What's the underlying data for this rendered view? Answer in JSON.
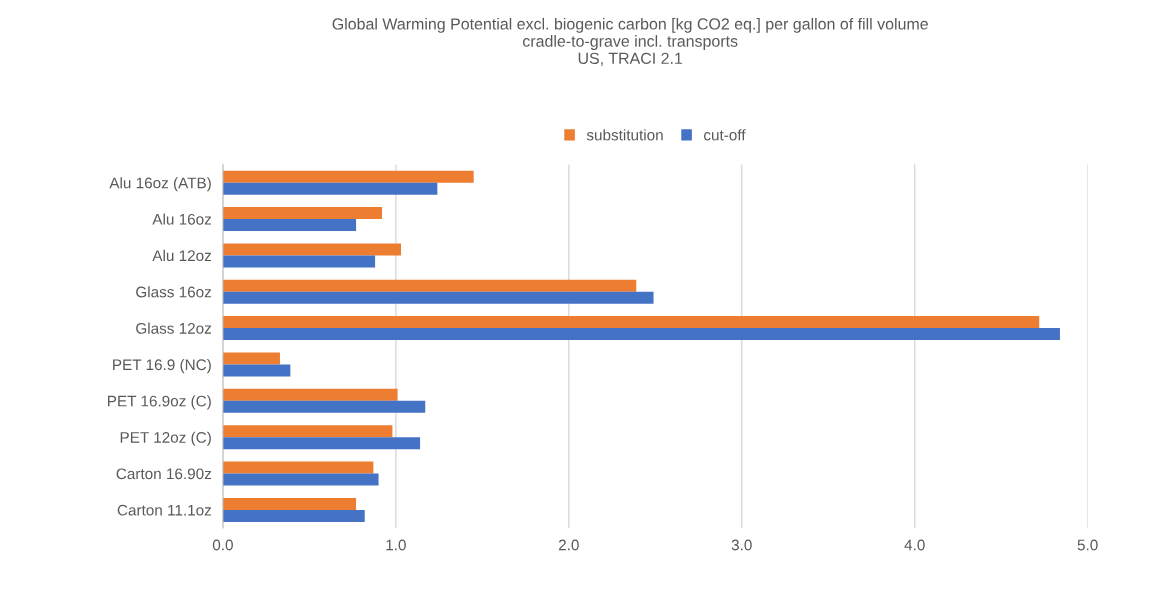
{
  "chart_data": {
    "type": "bar",
    "orientation": "horizontal",
    "title": "Global Warming Potential excl. biogenic carbon [kg CO2 eq.] per gallon of fill volume\ncradle-to-grave incl. transports\nUS, TRACI 2.1",
    "categories": [
      "Alu 16oz (ATB)",
      "Alu 16oz",
      "Alu 12oz",
      "Glass 16oz",
      "Glass 12oz",
      "PET 16.9 (NC)",
      "PET 16.9oz (C)",
      "PET 12oz (C)",
      "Carton 16.90z",
      "Carton 11.1oz"
    ],
    "series": [
      {
        "name": "substitution",
        "color": "#ed7d31",
        "values": [
          1.45,
          0.92,
          1.03,
          2.39,
          4.72,
          0.33,
          1.01,
          0.98,
          0.87,
          0.77
        ]
      },
      {
        "name": "cut-off",
        "color": "#4472c4",
        "values": [
          1.24,
          0.77,
          0.88,
          2.49,
          4.84,
          0.39,
          1.17,
          1.14,
          0.9,
          0.82
        ]
      }
    ],
    "xlim": [
      0,
      5
    ],
    "xticks": [
      {
        "value": 0,
        "label": "0.0"
      },
      {
        "value": 1,
        "label": "1.0"
      },
      {
        "value": 2,
        "label": "2.0"
      },
      {
        "value": 3,
        "label": "3.0"
      },
      {
        "value": 4,
        "label": "4.0"
      },
      {
        "value": 5,
        "label": "5.0"
      }
    ],
    "grid": "x",
    "legend": "top"
  }
}
